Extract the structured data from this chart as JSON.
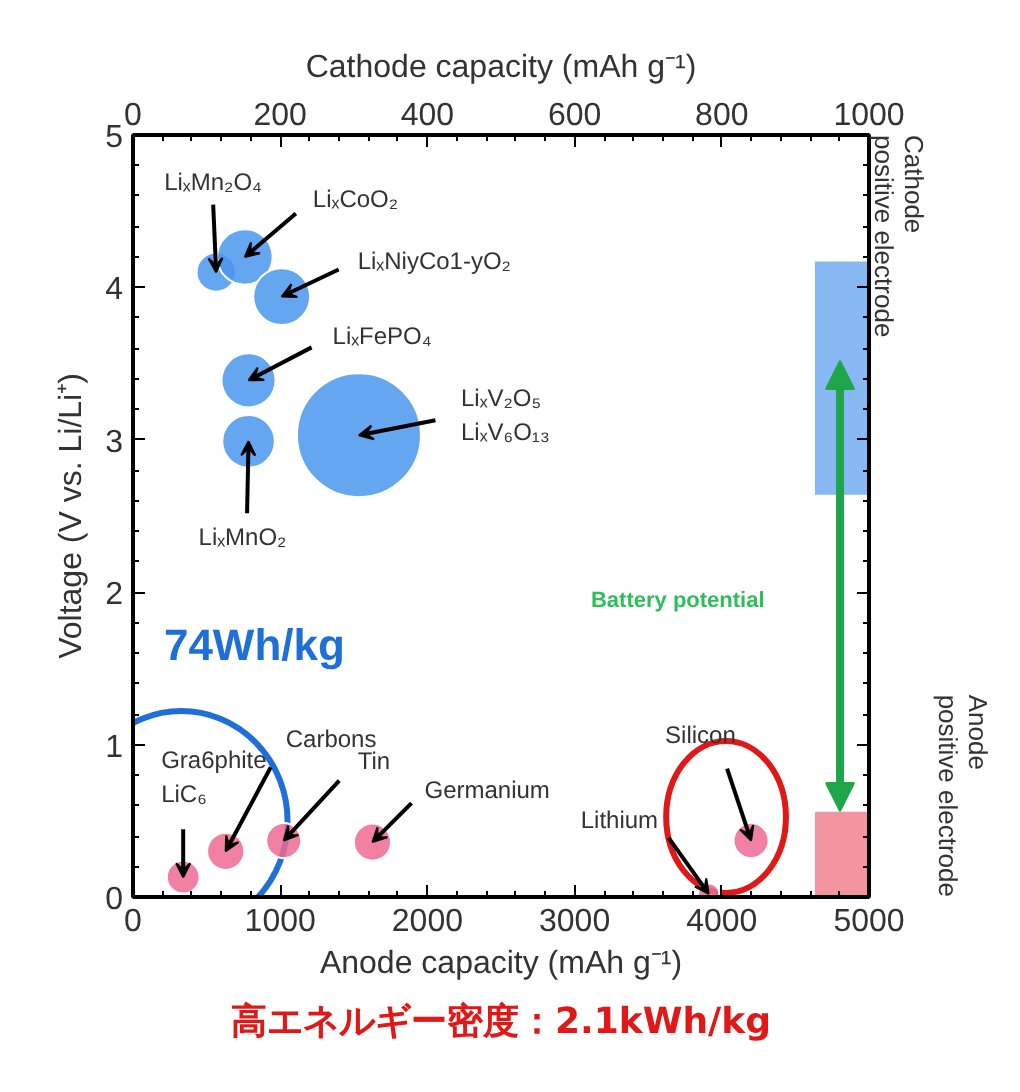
{
  "chart_data": {
    "type": "bubble",
    "xlabel": "Anode capacity (mAh g⁻¹)",
    "x2label": "Cathode capacity (mAh g⁻¹)",
    "ylabel": "Voltage (V vs. Li/Li⁺)",
    "xlim": [
      0,
      5000
    ],
    "xticks": [
      0,
      1000,
      2000,
      3000,
      4000,
      5000
    ],
    "x2lim": [
      0,
      1000
    ],
    "x2ticks": [
      0,
      200,
      400,
      600,
      800,
      1000
    ],
    "ylim": [
      0,
      5
    ],
    "yticks": [
      0,
      1,
      2,
      3,
      4,
      5
    ],
    "grid": false,
    "bands": [
      {
        "axis": "y",
        "from": 2.64,
        "to": 4.17,
        "color": "#6aa6f0"
      },
      {
        "axis": "y",
        "from": 0,
        "to": 0.56,
        "color": "#f07a8a"
      }
    ],
    "series": [
      {
        "axis": "x2",
        "color": "#4a96ee",
        "x": [
          113,
          152,
          202,
          157,
          157,
          307
        ],
        "values": [
          4.1,
          4.2,
          3.94,
          3.39,
          2.99,
          3.03
        ],
        "sizes": [
          0.1,
          0.2,
          0.21,
          0.19,
          0.18,
          1
        ],
        "value_labels": [
          "LiₓMn₂O₄",
          "LiₓCoO₂",
          "LiₓNiyCo1-yO₂",
          "LiₓFePO₄",
          "LiₓMnO₂",
          "LiₓV₂O₅\nLiₓV₆O₁₃"
        ]
      },
      {
        "color": "#ee6a92",
        "x": [
          341,
          630,
          1024,
          1627,
          3911,
          4199
        ],
        "values": [
          0.13,
          0.3,
          0.37,
          0.36,
          0.02,
          0.37
        ],
        "sizes": [
          0.07,
          0.09,
          0.08,
          0.09,
          0.03,
          0.08
        ],
        "value_labels": [
          "Gra6phite\nLiC₆",
          "Carbons",
          "Tin",
          "Germanium",
          "Lithium",
          "Silicon"
        ]
      }
    ],
    "annotations": [
      "74Wh/kg",
      "Battery potential",
      "Cathode\npositive electrode",
      "Anode\npositive electrode",
      "高エネルギー密度：2.1kWh/kg"
    ]
  }
}
